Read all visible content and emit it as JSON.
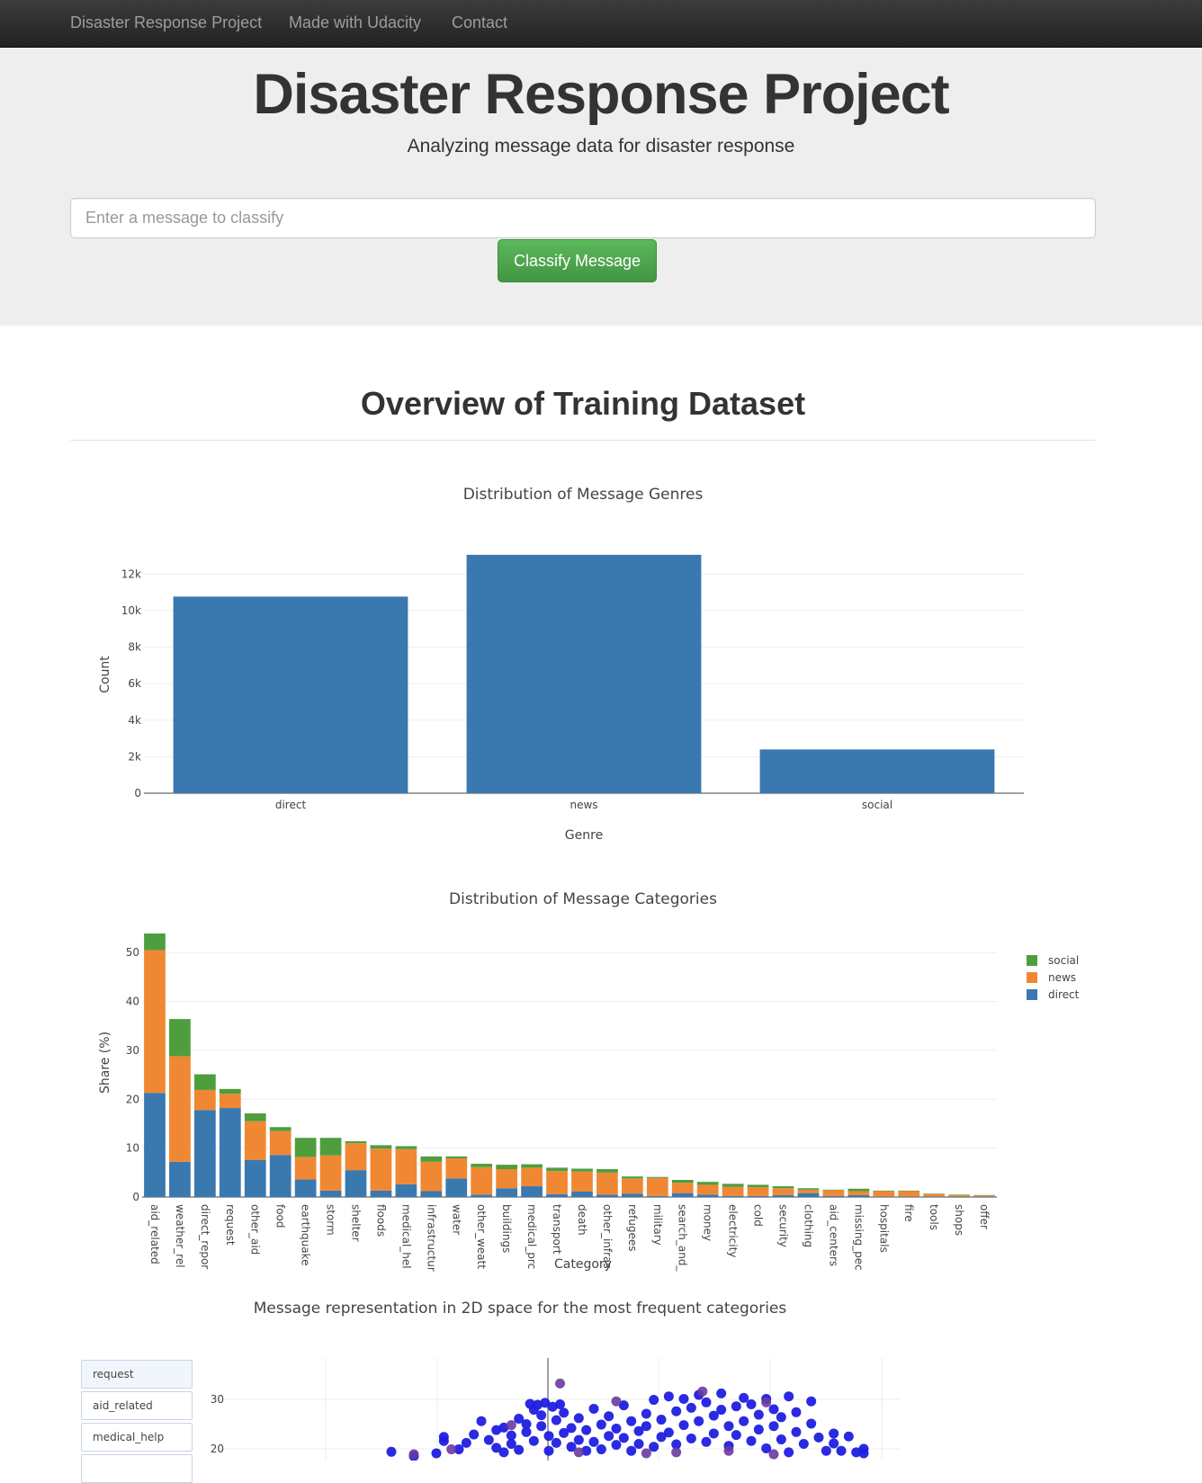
{
  "nav": {
    "brand": "Disaster Response Project",
    "links": [
      "Made with Udacity",
      "Contact"
    ]
  },
  "jumbotron": {
    "title": "Disaster Response Project",
    "subtitle": "Analyzing message data for disaster response",
    "input_placeholder": "Enter a message to classify",
    "button_label": "Classify Message"
  },
  "overview_title": "Overview of Training Dataset",
  "colors": {
    "direct": "#3a78b0",
    "news": "#f08833",
    "social": "#4e9e3e",
    "scatter": "#1f1fe0",
    "scatter_alt": "#6a3aa0"
  },
  "chart_data": [
    {
      "type": "bar",
      "title": "Distribution of Message Genres",
      "xlabel": "Genre",
      "ylabel": "Count",
      "categories": [
        "direct",
        "news",
        "social"
      ],
      "values": [
        10766,
        13054,
        2396
      ],
      "ylim": [
        0,
        13000
      ],
      "yticks": [
        0,
        2000,
        4000,
        6000,
        8000,
        10000,
        12000
      ],
      "ytick_labels": [
        "0",
        "2k",
        "4k",
        "6k",
        "8k",
        "10k",
        "12k"
      ],
      "grid": true
    },
    {
      "type": "bar",
      "stacked": true,
      "title": "Distribution of Message Categories",
      "xlabel": "Category",
      "ylabel": "Share (%)",
      "ylim": [
        0,
        55
      ],
      "yticks": [
        0,
        10,
        20,
        30,
        40,
        50
      ],
      "legend_position": "top-right",
      "legend_order": [
        "social",
        "news",
        "direct"
      ],
      "categories": [
        "aid_related",
        "weather_rel",
        "direct_repor",
        "request",
        "other_aid",
        "food",
        "earthquake",
        "storm",
        "shelter",
        "floods",
        "medical_hel",
        "infrastructur",
        "water",
        "other_weatt",
        "buildings",
        "medical_prc",
        "transport",
        "death",
        "other_infras",
        "refugees",
        "military",
        "search_and_",
        "money",
        "electricity",
        "cold",
        "security",
        "clothing",
        "aid_centers",
        "missing_pec",
        "hospitals",
        "fire",
        "tools",
        "shops",
        "offer"
      ],
      "series": [
        {
          "name": "direct",
          "values": [
            21.3,
            7.2,
            17.8,
            18.2,
            7.6,
            8.6,
            3.6,
            1.3,
            5.5,
            1.3,
            2.6,
            1.2,
            3.8,
            0.5,
            1.8,
            2.2,
            0.6,
            1.1,
            0.5,
            0.7,
            0.2,
            0.8,
            0.5,
            0.2,
            0.2,
            0.4,
            0.8,
            0.2,
            0.4,
            0.1,
            0.1,
            0.1,
            0.1,
            0.1
          ]
        },
        {
          "name": "news",
          "values": [
            29.2,
            21.6,
            4.1,
            2.9,
            7.9,
            4.9,
            4.6,
            7.2,
            5.5,
            8.6,
            7.2,
            6.0,
            4.1,
            5.6,
            3.9,
            3.8,
            4.7,
            4.1,
            4.5,
            3.1,
            3.7,
            2.1,
            2.0,
            1.9,
            1.8,
            1.4,
            0.7,
            1.2,
            0.8,
            1.1,
            1.1,
            0.5,
            0.3,
            0.2
          ]
        },
        {
          "name": "social",
          "values": [
            3.4,
            7.6,
            3.2,
            1.0,
            1.6,
            0.8,
            3.9,
            3.6,
            0.4,
            0.7,
            0.6,
            1.1,
            0.4,
            0.7,
            0.9,
            0.7,
            0.7,
            0.6,
            0.7,
            0.4,
            0.2,
            0.6,
            0.6,
            0.6,
            0.5,
            0.4,
            0.3,
            0.1,
            0.5,
            0.1,
            0.1,
            0.1,
            0.1,
            0.1
          ]
        }
      ]
    },
    {
      "type": "scatter",
      "title": "Message representation in 2D space for the most frequent categories",
      "legend_items": [
        "request",
        "aid_related",
        "medical_help"
      ],
      "yticks": [
        20,
        30
      ],
      "ytick_labels": [
        "20",
        "30"
      ],
      "y_visible_range": [
        17,
        35
      ],
      "x_visible_range": [
        -30,
        30
      ],
      "points": [
        [
          -21,
          19.4
        ],
        [
          -18,
          18.5
        ],
        [
          -15,
          19.1
        ],
        [
          -14,
          21.6
        ],
        [
          -14,
          22.4
        ],
        [
          -12,
          19.9
        ],
        [
          -11,
          21.2
        ],
        [
          -10,
          22.9
        ],
        [
          -9,
          25.6
        ],
        [
          -8,
          21.8
        ],
        [
          -7,
          23.8
        ],
        [
          -7,
          20.2
        ],
        [
          -6,
          24.3
        ],
        [
          -6,
          19.3
        ],
        [
          -5,
          22.7
        ],
        [
          -5,
          21.0
        ],
        [
          -4,
          26.1
        ],
        [
          -4,
          19.8
        ],
        [
          -3,
          23.4
        ],
        [
          -3,
          25.0
        ],
        [
          -2,
          27.9
        ],
        [
          -2,
          21.6
        ],
        [
          -1,
          24.6
        ],
        [
          -1,
          26.8
        ],
        [
          0,
          22.6
        ],
        [
          0,
          19.6
        ],
        [
          1,
          25.8
        ],
        [
          1,
          21.2
        ],
        [
          2,
          23.2
        ],
        [
          2,
          27.3
        ],
        [
          -1.5,
          28.9
        ],
        [
          -0.5,
          29.3
        ],
        [
          0.5,
          28.5
        ],
        [
          -2.5,
          29.1
        ],
        [
          1.5,
          29.0
        ],
        [
          3,
          20.4
        ],
        [
          3,
          24.2
        ],
        [
          4,
          21.8
        ],
        [
          4,
          26.2
        ],
        [
          5,
          19.6
        ],
        [
          5,
          23.8
        ],
        [
          6,
          21.4
        ],
        [
          6,
          28.1
        ],
        [
          7,
          24.9
        ],
        [
          7,
          19.9
        ],
        [
          8,
          22.6
        ],
        [
          8,
          26.6
        ],
        [
          9,
          20.8
        ],
        [
          9,
          24.1
        ],
        [
          10,
          28.8
        ],
        [
          10,
          22.2
        ],
        [
          11,
          25.6
        ],
        [
          11,
          19.6
        ],
        [
          12,
          23.6
        ],
        [
          12,
          21.0
        ],
        [
          13,
          27.1
        ],
        [
          13,
          24.6
        ],
        [
          14,
          20.4
        ],
        [
          14,
          29.9
        ],
        [
          15,
          22.4
        ],
        [
          15,
          25.9
        ],
        [
          16,
          30.6
        ],
        [
          16,
          23.3
        ],
        [
          17,
          27.6
        ],
        [
          17,
          20.9
        ],
        [
          18,
          30.1
        ],
        [
          18,
          24.8
        ],
        [
          19,
          22.1
        ],
        [
          19,
          28.3
        ],
        [
          20,
          30.9
        ],
        [
          20,
          25.6
        ],
        [
          21,
          21.4
        ],
        [
          21,
          29.4
        ],
        [
          22,
          26.7
        ],
        [
          22,
          23.1
        ],
        [
          23,
          31.2
        ],
        [
          23,
          27.9
        ],
        [
          24,
          24.6
        ],
        [
          24,
          20.6
        ],
        [
          25,
          28.6
        ],
        [
          25,
          22.8
        ],
        [
          26,
          30.3
        ],
        [
          26,
          25.6
        ],
        [
          27,
          21.6
        ],
        [
          27,
          29.0
        ],
        [
          28,
          23.9
        ],
        [
          28,
          26.9
        ],
        [
          29,
          30.1
        ],
        [
          29,
          20.1
        ],
        [
          30,
          24.6
        ],
        [
          30,
          28.0
        ],
        [
          31,
          21.9
        ],
        [
          31,
          26.4
        ],
        [
          32,
          30.6
        ],
        [
          32,
          19.3
        ],
        [
          33,
          23.4
        ],
        [
          33,
          27.4
        ],
        [
          34,
          21.0
        ],
        [
          35,
          25.1
        ],
        [
          35,
          29.6
        ],
        [
          36,
          22.3
        ],
        [
          37,
          19.6
        ],
        [
          38,
          23.1
        ],
        [
          38,
          21.1
        ],
        [
          39,
          19.6
        ],
        [
          40,
          22.5
        ],
        [
          41,
          19.3
        ],
        [
          42,
          20.0
        ],
        [
          42,
          19.1
        ]
      ],
      "highlight_points": [
        [
          -18,
          18.9
        ],
        [
          -13,
          19.9
        ],
        [
          1.5,
          33.2
        ],
        [
          9,
          29.6
        ],
        [
          20.5,
          31.6
        ],
        [
          29,
          29.4
        ],
        [
          17,
          19.3
        ],
        [
          13,
          19.1
        ],
        [
          24,
          19.6
        ],
        [
          30,
          18.9
        ],
        [
          4,
          19.3
        ],
        [
          -5,
          24.8
        ]
      ]
    }
  ]
}
